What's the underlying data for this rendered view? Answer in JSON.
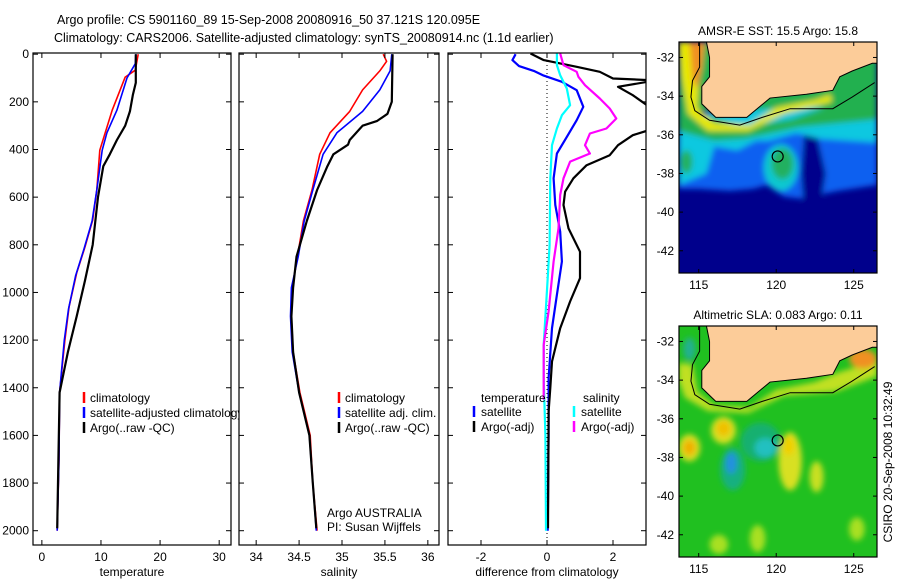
{
  "title": {
    "line1": "Argo profile: CS 5901160_89 15-Sep-2008 20080916_50 37.121S 120.095E",
    "line2": "Climatology: CARS2006. Satellite-adjusted climatology: synTS_20080914.nc (1.1d earlier)"
  },
  "credit": "Argo AUSTRALIA",
  "pi": "PI: Susan Wijffels",
  "stamp": "CSIRO 20-Sep-2008 10:32:49",
  "chart_data": [
    {
      "type": "line",
      "id": "temperature",
      "xlabel": "temperature",
      "ylabel": "",
      "xlim": [
        -1.5,
        32
      ],
      "ylim": [
        -5,
        2060
      ],
      "y_reversed": true,
      "xticks": [
        0,
        10,
        20,
        30
      ],
      "yticks": [
        0,
        200,
        400,
        600,
        800,
        1000,
        1200,
        1400,
        1600,
        1800,
        2000
      ],
      "show_ytick_labels": true,
      "legend": [
        "climatology",
        "satellite-adjusted climatology",
        "Argo(..raw -QC)"
      ],
      "series": [
        {
          "name": "climatology",
          "color": "#ff0000",
          "points": [
            [
              16.3,
              0
            ],
            [
              15.8,
              67
            ],
            [
              14.1,
              96
            ],
            [
              11.9,
              235
            ],
            [
              9.8,
              403
            ],
            [
              9.3,
              570
            ],
            [
              8.6,
              696
            ],
            [
              7.3,
              809
            ],
            [
              5.9,
              918
            ],
            [
              4.6,
              1060
            ],
            [
              3.9,
              1200
            ],
            [
              3.0,
              1420
            ],
            [
              2.9,
              1700
            ],
            [
              2.6,
              2000
            ]
          ]
        },
        {
          "name": "satellite-adjusted climatology",
          "color": "#0000ff",
          "points": [
            [
              15.9,
              0
            ],
            [
              15.8,
              40
            ],
            [
              14.4,
              100
            ],
            [
              12.7,
              235
            ],
            [
              11.0,
              330
            ],
            [
              10.2,
              403
            ],
            [
              9.3,
              570
            ],
            [
              8.5,
              700
            ],
            [
              7.1,
              820
            ],
            [
              5.7,
              930
            ],
            [
              4.5,
              1070
            ],
            [
              3.8,
              1200
            ],
            [
              3.0,
              1420
            ],
            [
              2.9,
              1700
            ],
            [
              2.6,
              2000
            ]
          ]
        },
        {
          "name": "Argo(..raw -QC)",
          "color": "#000000",
          "points": [
            [
              15.9,
              0
            ],
            [
              15.9,
              120
            ],
            [
              15.4,
              170
            ],
            [
              14.9,
              240
            ],
            [
              14.1,
              300
            ],
            [
              12.7,
              360
            ],
            [
              11.5,
              420
            ],
            [
              10.4,
              470
            ],
            [
              9.5,
              600
            ],
            [
              8.6,
              800
            ],
            [
              7.3,
              950
            ],
            [
              5.9,
              1100
            ],
            [
              4.4,
              1250
            ],
            [
              3.0,
              1420
            ],
            [
              2.8,
              1700
            ],
            [
              2.6,
              1990
            ]
          ]
        }
      ]
    },
    {
      "type": "line",
      "id": "salinity",
      "xlabel": "salinity",
      "xlim": [
        33.8,
        36.13
      ],
      "ylim": [
        -5,
        2060
      ],
      "y_reversed": true,
      "xticks": [
        34,
        34.5,
        35,
        35.5,
        36
      ],
      "yticks": [
        0,
        200,
        400,
        600,
        800,
        1000,
        1200,
        1400,
        1600,
        1800,
        2000
      ],
      "show_ytick_labels": false,
      "legend": [
        "climatology",
        "satellite adj. clim.",
        "Argo(..raw -QC)"
      ],
      "series": [
        {
          "name": "climatology",
          "color": "#ff0000",
          "points": [
            [
              35.48,
              0
            ],
            [
              35.52,
              30
            ],
            [
              35.44,
              70
            ],
            [
              35.24,
              150
            ],
            [
              35.09,
              240
            ],
            [
              34.86,
              330
            ],
            [
              34.74,
              420
            ],
            [
              34.65,
              570
            ],
            [
              34.55,
              700
            ],
            [
              34.48,
              850
            ],
            [
              34.42,
              980
            ],
            [
              34.41,
              1100
            ],
            [
              34.43,
              1250
            ],
            [
              34.51,
              1420
            ],
            [
              34.63,
              1600
            ],
            [
              34.66,
              1800
            ],
            [
              34.71,
              2000
            ]
          ]
        },
        {
          "name": "satellite adj. clim.",
          "color": "#0000ff",
          "points": [
            [
              35.58,
              0
            ],
            [
              35.56,
              70
            ],
            [
              35.44,
              150
            ],
            [
              35.24,
              240
            ],
            [
              34.94,
              330
            ],
            [
              34.78,
              420
            ],
            [
              34.66,
              570
            ],
            [
              34.56,
              700
            ],
            [
              34.49,
              850
            ],
            [
              34.41,
              980
            ],
            [
              34.4,
              1100
            ],
            [
              34.42,
              1250
            ],
            [
              34.5,
              1420
            ],
            [
              34.62,
              1600
            ],
            [
              34.66,
              1800
            ],
            [
              34.7,
              2000
            ]
          ]
        },
        {
          "name": "Argo(..raw -QC)",
          "color": "#000000",
          "points": [
            [
              35.59,
              0
            ],
            [
              35.58,
              200
            ],
            [
              35.53,
              250
            ],
            [
              35.41,
              280
            ],
            [
              35.24,
              300
            ],
            [
              35.09,
              360
            ],
            [
              35.07,
              380
            ],
            [
              34.9,
              420
            ],
            [
              34.83,
              470
            ],
            [
              34.71,
              570
            ],
            [
              34.59,
              700
            ],
            [
              34.47,
              850
            ],
            [
              34.43,
              980
            ],
            [
              34.41,
              1100
            ],
            [
              34.43,
              1250
            ],
            [
              34.5,
              1420
            ],
            [
              34.62,
              1600
            ],
            [
              34.66,
              1800
            ],
            [
              34.7,
              1990
            ]
          ]
        }
      ]
    },
    {
      "type": "line",
      "id": "difference",
      "xlabel": "difference from climatology",
      "xlim": [
        -3,
        3
      ],
      "ylim": [
        -5,
        2060
      ],
      "y_reversed": true,
      "xticks": [
        -2,
        0,
        2
      ],
      "yticks": [
        0,
        200,
        400,
        600,
        800,
        1000,
        1200,
        1400,
        1600,
        1800,
        2000
      ],
      "show_ytick_labels": false,
      "zero_line": true,
      "legend_groups": [
        {
          "heading": "temperature",
          "entries": [
            "satellite",
            "Argo(-adj)"
          ]
        },
        {
          "heading": "salinity",
          "entries": [
            "satellite",
            "Argo(-adj)"
          ]
        }
      ],
      "series": [
        {
          "name": "temperature satellite",
          "color": "#0000ff",
          "points": [
            [
              -0.95,
              0
            ],
            [
              -1.05,
              25
            ],
            [
              -0.85,
              50
            ],
            [
              -0.4,
              70
            ],
            [
              -0.1,
              90
            ],
            [
              0.45,
              116
            ],
            [
              0.9,
              151
            ],
            [
              1.1,
              221
            ],
            [
              0.9,
              277
            ],
            [
              0.6,
              347
            ],
            [
              0.3,
              417
            ],
            [
              0.2,
              521
            ],
            [
              0.25,
              633
            ],
            [
              0.4,
              745
            ],
            [
              0.45,
              870
            ],
            [
              0.3,
              1010
            ],
            [
              0.15,
              1150
            ],
            [
              0.05,
              1360
            ],
            [
              0.05,
              1600
            ],
            [
              0.02,
              2000
            ]
          ]
        },
        {
          "name": "temperature Argo(-adj)",
          "color": "#000000",
          "points": [
            [
              -0.5,
              -3
            ],
            [
              -0.1,
              25
            ],
            [
              0.9,
              53
            ],
            [
              1.6,
              74
            ],
            [
              2.0,
              102
            ],
            [
              3.3,
              110
            ],
            [
              2.15,
              137
            ],
            [
              2.6,
              172
            ],
            [
              3.1,
              221
            ],
            [
              3.1,
              318
            ],
            [
              2.6,
              340
            ],
            [
              2.15,
              382
            ],
            [
              1.9,
              424
            ],
            [
              1.2,
              466
            ],
            [
              0.8,
              521
            ],
            [
              0.55,
              577
            ],
            [
              0.5,
              633
            ],
            [
              0.65,
              731
            ],
            [
              1.0,
              829
            ],
            [
              1.0,
              940
            ],
            [
              0.7,
              1038
            ],
            [
              0.4,
              1150
            ],
            [
              0.15,
              1290
            ],
            [
              0.1,
              1400
            ],
            [
              0.05,
              1500
            ],
            [
              0.03,
              1990
            ]
          ]
        },
        {
          "name": "salinity satellite",
          "color": "#00ffff",
          "points": [
            [
              0.3,
              -3
            ],
            [
              0.3,
              46
            ],
            [
              0.4,
              88
            ],
            [
              0.6,
              144
            ],
            [
              0.7,
              214
            ],
            [
              0.45,
              256
            ],
            [
              0.3,
              312
            ],
            [
              0.15,
              382
            ],
            [
              0.1,
              521
            ],
            [
              0.08,
              801
            ],
            [
              0.02,
              940
            ],
            [
              -0.1,
              1220
            ],
            [
              -0.1,
              1360
            ],
            [
              -0.05,
              1600
            ],
            [
              -0.03,
              2000
            ]
          ]
        },
        {
          "name": "salinity Argo(-adj)",
          "color": "#ff00ff",
          "points": [
            [
              0.4,
              -3
            ],
            [
              0.5,
              46
            ],
            [
              0.9,
              74
            ],
            [
              0.95,
              95
            ],
            [
              1.15,
              130
            ],
            [
              1.6,
              186
            ],
            [
              1.9,
              228
            ],
            [
              2.1,
              270
            ],
            [
              1.8,
              312
            ],
            [
              1.3,
              333
            ],
            [
              1.15,
              382
            ],
            [
              1.3,
              417
            ],
            [
              0.7,
              451
            ],
            [
              0.5,
              521
            ],
            [
              0.4,
              591
            ],
            [
              0.35,
              731
            ],
            [
              0.2,
              870
            ],
            [
              0.05,
              1080
            ],
            [
              -0.1,
              1220
            ],
            [
              -0.1,
              1450
            ]
          ]
        }
      ]
    },
    {
      "type": "heatmap",
      "id": "sst-map",
      "title": "AMSR-E SST: 15.5 Argo: 15.8",
      "field": "sst",
      "xlim": [
        113.73,
        126.5
      ],
      "ylim": [
        -43.15,
        -31.2
      ],
      "xticks": [
        115,
        120,
        125
      ],
      "yticks": [
        -32,
        -34,
        -36,
        -38,
        -40,
        -42
      ],
      "argo_position": [
        120.095,
        -37.121
      ],
      "land_color": "#fccc99",
      "coastline": [
        [
          115.5,
          -31.2
        ],
        [
          115.7,
          -32.0
        ],
        [
          115.7,
          -33.0
        ],
        [
          115.2,
          -33.5
        ],
        [
          115.2,
          -34.4
        ],
        [
          116.1,
          -35.1
        ],
        [
          118.1,
          -35.1
        ],
        [
          119.6,
          -34.1
        ],
        [
          121.95,
          -33.9
        ],
        [
          123.65,
          -33.7
        ],
        [
          124.1,
          -33.0
        ],
        [
          124.9,
          -32.7
        ],
        [
          126.2,
          -32.3
        ],
        [
          126.5,
          -32.3
        ],
        [
          126.5,
          -31.2
        ]
      ],
      "isobath": [
        [
          115.06,
          -31.2
        ],
        [
          115.06,
          -32.5
        ],
        [
          114.6,
          -33.2
        ],
        [
          114.5,
          -34.05
        ],
        [
          114.75,
          -34.75
        ],
        [
          115.7,
          -35.25
        ],
        [
          117.65,
          -35.5
        ],
        [
          119.1,
          -35.1
        ],
        [
          120.9,
          -34.65
        ],
        [
          123.65,
          -34.65
        ],
        [
          124.9,
          -34.05
        ],
        [
          126.35,
          -33.3
        ]
      ]
    },
    {
      "type": "heatmap",
      "id": "sla-map",
      "title": "Altimetric SLA: 0.083 Argo: 0.11",
      "field": "sla",
      "xlim": [
        113.73,
        126.5
      ],
      "ylim": [
        -43.15,
        -31.2
      ],
      "xticks": [
        115,
        120,
        125
      ],
      "yticks": [
        -32,
        -34,
        -36,
        -38,
        -40,
        -42
      ],
      "argo_position": [
        120.095,
        -37.121
      ],
      "land_color": "#fccc99",
      "coastline": [
        [
          115.5,
          -31.2
        ],
        [
          115.7,
          -32.0
        ],
        [
          115.7,
          -33.0
        ],
        [
          115.2,
          -33.5
        ],
        [
          115.2,
          -34.4
        ],
        [
          116.1,
          -35.1
        ],
        [
          118.1,
          -35.1
        ],
        [
          119.6,
          -34.1
        ],
        [
          121.95,
          -33.9
        ],
        [
          123.65,
          -33.7
        ],
        [
          124.1,
          -33.0
        ],
        [
          124.9,
          -32.7
        ],
        [
          126.2,
          -32.3
        ],
        [
          126.5,
          -32.3
        ],
        [
          126.5,
          -31.2
        ]
      ],
      "isobath": [
        [
          115.06,
          -31.2
        ],
        [
          115.06,
          -32.5
        ],
        [
          114.6,
          -33.2
        ],
        [
          114.5,
          -34.05
        ],
        [
          114.75,
          -34.75
        ],
        [
          115.7,
          -35.25
        ],
        [
          117.65,
          -35.5
        ],
        [
          119.1,
          -35.1
        ],
        [
          120.9,
          -34.65
        ],
        [
          123.65,
          -34.65
        ],
        [
          124.9,
          -34.05
        ],
        [
          126.35,
          -33.3
        ]
      ]
    }
  ]
}
